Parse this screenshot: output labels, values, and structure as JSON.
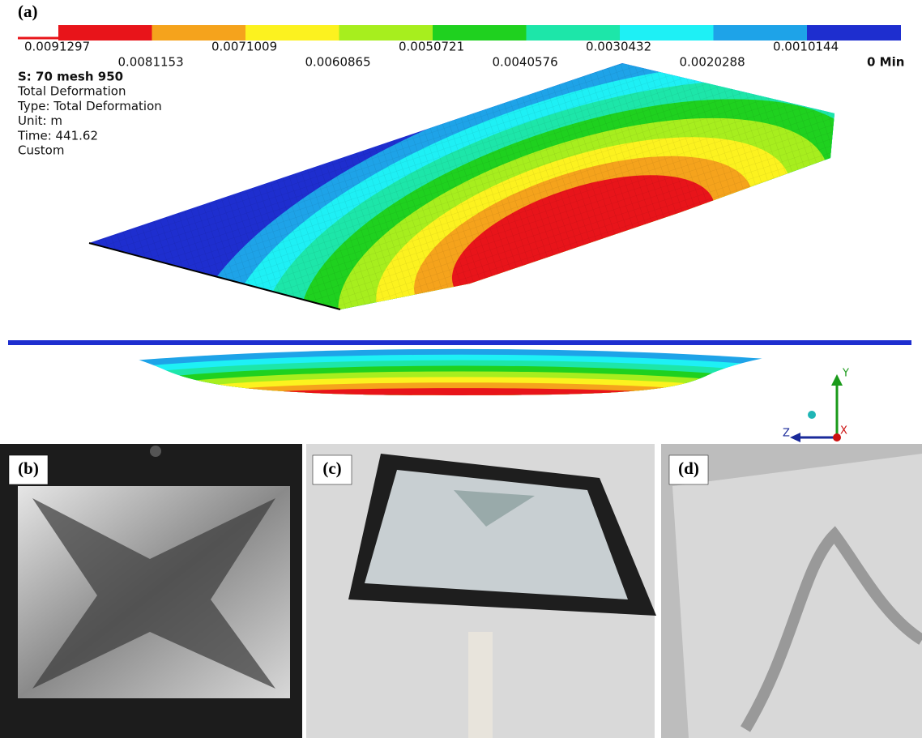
{
  "panel_a": {
    "label": "(a)",
    "legend": {
      "values": [
        "0.0091297",
        "0.0081153",
        "0.0071009",
        "0.0060865",
        "0.0050721",
        "0.0040576",
        "0.0030432",
        "0.0020288",
        "0.0010144"
      ],
      "colors": [
        "#e8141a",
        "#f5a31c",
        "#fcf21f",
        "#a7ee1e",
        "#1fd11f",
        "#1de6a9",
        "#1ef0f5",
        "#1ea3e8",
        "#1e2ecf"
      ],
      "min_label": "0 Min"
    },
    "info": [
      "S: 70 mesh 950",
      "Total Deformation",
      "Type: Total Deformation",
      "Unit: m",
      "Time: 441.62",
      "Custom"
    ],
    "axes": {
      "y": "Y",
      "z": "Z",
      "x": "X"
    }
  },
  "photos": [
    {
      "label": "(b)"
    },
    {
      "label": "(c)"
    },
    {
      "label": "(d)"
    }
  ]
}
